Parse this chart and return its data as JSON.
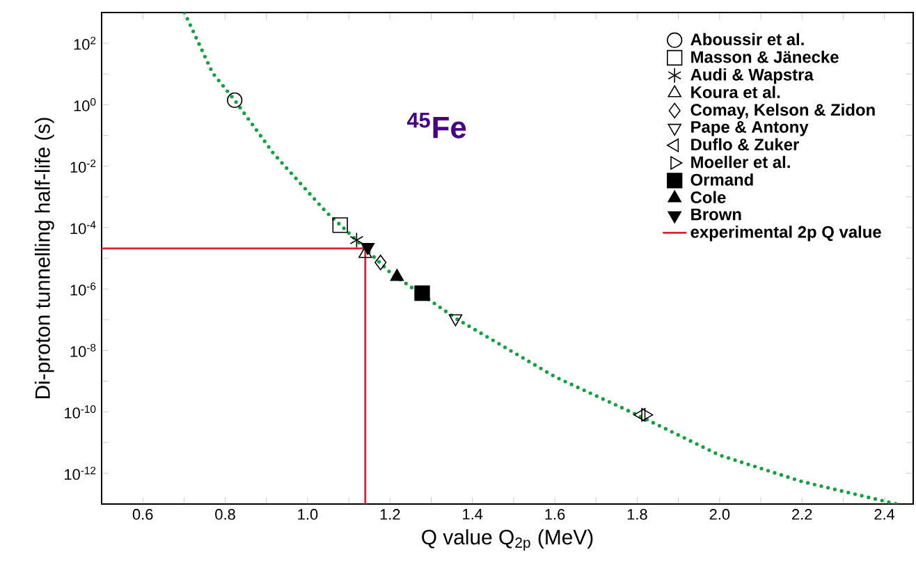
{
  "chart_data": {
    "type": "scatter",
    "xlabel": "Q value Q$_{2p}$ (MeV)",
    "ylabel": "Di-proton tunnelling half-life (s)",
    "annotations": [
      "$^{45}$Fe"
    ],
    "xlim": [
      0.5,
      2.47
    ],
    "ylim": [
      1e-13,
      1000.0
    ],
    "log": "y",
    "legend": "top right",
    "xticks": [
      {
        "value": 0.5,
        "label": null
      },
      0.6,
      {
        "value": 0.7,
        "label": null
      },
      0.8,
      {
        "value": 0.9,
        "label": null
      },
      {
        "value": 1.0,
        "label": "1.0"
      },
      {
        "value": 1.1,
        "label": null
      },
      1.2,
      {
        "value": 1.3,
        "label": null
      },
      1.4,
      {
        "value": 1.5,
        "label": null
      },
      1.6,
      {
        "value": 1.7,
        "label": null
      },
      1.8,
      {
        "value": 1.9,
        "label": null
      },
      {
        "value": 2.0,
        "label": "2.0"
      },
      {
        "value": 2.1,
        "label": null
      },
      2.2,
      {
        "value": 2.3,
        "label": null
      },
      2.4
    ],
    "yticks": [
      {
        "value": 1e-13,
        "label": null
      },
      {
        "value": 1e-12,
        "label": "10$^{-12}$"
      },
      {
        "value": 1e-11,
        "label": null
      },
      {
        "value": 1e-10,
        "label": "10$^{-10}$"
      },
      {
        "value": 1e-09,
        "label": null
      },
      {
        "value": 1e-08,
        "label": "10$^{-8}$"
      },
      {
        "value": 1e-07,
        "label": null
      },
      {
        "value": 1e-06,
        "label": "10$^{-6}$"
      },
      {
        "value": 1e-05,
        "label": null
      },
      {
        "value": 0.0001,
        "label": "10$^{-4}$"
      },
      {
        "value": 0.001,
        "label": null
      },
      {
        "value": 0.01,
        "label": "10$^{-2}$"
      },
      {
        "value": 0.1,
        "label": null
      },
      {
        "value": 1,
        "label": "10$^{0}$"
      },
      {
        "value": 10,
        "label": null
      },
      {
        "value": 100,
        "label": "10$^{2}$"
      },
      {
        "value": 1000,
        "label": null
      }
    ],
    "series": [
      {
        "name": "Aboussir et al.",
        "marker": "circle",
        "color": "#000000",
        "x": [
          0.823
        ],
        "values": [
          1.4
        ]
      },
      {
        "name": "Masson & Jänecke",
        "marker": "square",
        "color": "#000000",
        "x": [
          1.079
        ],
        "values": [
          0.00012
        ]
      },
      {
        "name": "Audi & Wapstra",
        "marker": "cross",
        "color": "#000000",
        "x": [
          1.119
        ],
        "values": [
          3.9e-05
        ]
      },
      {
        "name": "Koura et al.",
        "marker": "triangle",
        "color": "#000000",
        "x": [
          1.14
        ],
        "values": [
          1.4e-05
        ]
      },
      {
        "name": "Comay, Kelson & Zidon",
        "marker": "diamond",
        "color": "#000000",
        "x": [
          1.177
        ],
        "values": [
          7.3e-06
        ]
      },
      {
        "name": "Pape & Antony",
        "marker": "triangle-down",
        "color": "#000000",
        "x": [
          1.359
        ],
        "values": [
          1.1e-07
        ]
      },
      {
        "name": "Duflo & Zuker",
        "marker": "triangle-left",
        "color": "#000000",
        "x": [
          1.81
        ],
        "values": [
          8e-11
        ]
      },
      {
        "name": "Moeller et al.",
        "marker": "triangle-right",
        "color": "#000000",
        "x": [
          1.82
        ],
        "values": [
          8e-11
        ]
      },
      {
        "name": "Ormand",
        "marker": "square-filled",
        "color": "#000000",
        "x": [
          1.278
        ],
        "values": [
          7.3e-07
        ]
      },
      {
        "name": "Cole",
        "marker": "triangle-filled",
        "color": "#000000",
        "x": [
          1.217
        ],
        "values": [
          2.5e-06
        ]
      },
      {
        "name": "Brown",
        "marker": "triangle-down-filled",
        "color": "#000000",
        "x": [
          1.146
        ],
        "values": [
          2.3e-05
        ]
      },
      {
        "name": "experimental 2p Q value",
        "type": "line",
        "marker": "none",
        "line_style": "solid",
        "color": "#e02030",
        "x": [
          0.5,
          1.14,
          1.14
        ],
        "values": [
          2.1e-05,
          2.1e-05,
          1e-13
        ]
      },
      {
        "type": "line",
        "marker": "none",
        "line_style": "dotted",
        "color": "#10a040",
        "x": [
          0.701,
          0.769,
          0.823,
          0.917,
          1.045,
          1.08,
          1.2,
          1.36,
          1.6,
          1.8,
          2.0,
          2.2,
          2.43
        ],
        "values": [
          1000,
          11,
          1.4,
          0.026,
          0.00032,
          0.00012,
          3.5e-06,
          1.1e-07,
          1.4e-09,
          8e-11,
          3.9e-12,
          5.4e-13,
          1e-13
        ]
      }
    ]
  }
}
